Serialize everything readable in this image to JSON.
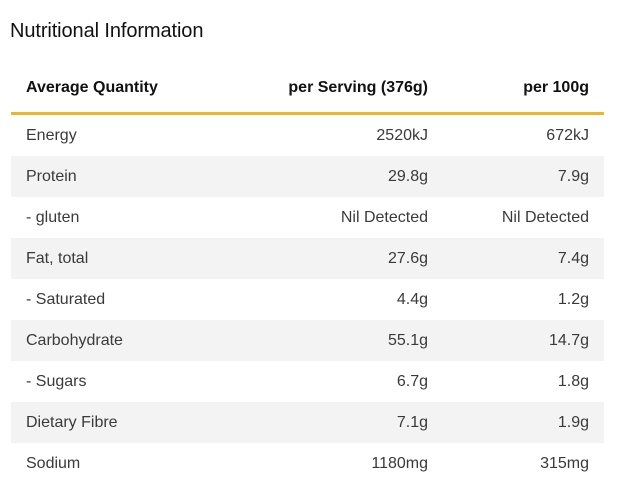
{
  "title": "Nutritional Information",
  "columns": [
    "Average Quantity",
    "per Serving (376g)",
    "per 100g"
  ],
  "accent_color": "#f0b428",
  "rows": [
    {
      "name": "Energy",
      "serving": "2520kJ",
      "per100": "672kJ"
    },
    {
      "name": "Protein",
      "serving": "29.8g",
      "per100": "7.9g"
    },
    {
      "name": "- gluten",
      "serving": "Nil Detected",
      "per100": "Nil Detected"
    },
    {
      "name": "Fat, total",
      "serving": "27.6g",
      "per100": "7.4g"
    },
    {
      "name": "- Saturated",
      "serving": "4.4g",
      "per100": "1.2g"
    },
    {
      "name": "Carbohydrate",
      "serving": "55.1g",
      "per100": "14.7g"
    },
    {
      "name": "- Sugars",
      "serving": "6.7g",
      "per100": "1.8g"
    },
    {
      "name": "Dietary Fibre",
      "serving": "7.1g",
      "per100": "1.9g"
    },
    {
      "name": "Sodium",
      "serving": "1180mg",
      "per100": "315mg"
    }
  ]
}
